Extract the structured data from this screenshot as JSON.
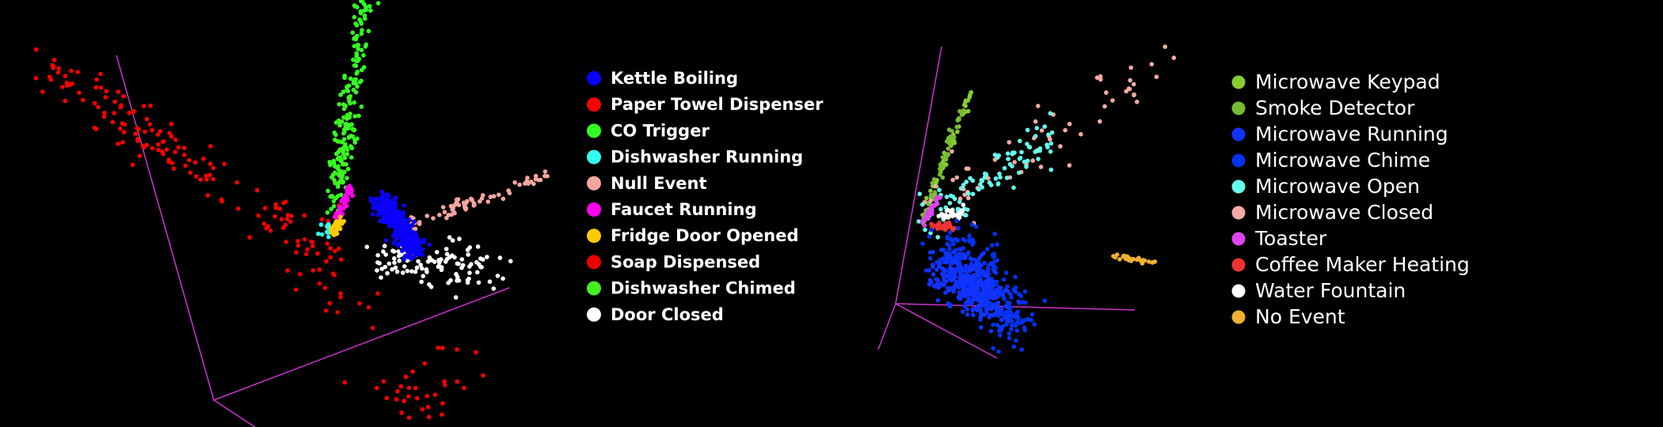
{
  "panels": [
    {
      "legend": [
        {
          "label": "Kettle Boiling",
          "color": "#0a00ff"
        },
        {
          "label": "Paper Towel Dispenser",
          "color": "#ff0000"
        },
        {
          "label": "CO Trigger",
          "color": "#33ff22"
        },
        {
          "label": "Dishwasher Running",
          "color": "#33ffee"
        },
        {
          "label": "Null Event",
          "color": "#f5a5a0"
        },
        {
          "label": "Faucet Running",
          "color": "#ff00ee"
        },
        {
          "label": "Fridge Door Opened",
          "color": "#ffcc00"
        },
        {
          "label": "Soap Dispensed",
          "color": "#ee0000"
        },
        {
          "label": "Dishwasher Chimed",
          "color": "#44ee22"
        },
        {
          "label": "Door Closed",
          "color": "#ffffff"
        }
      ]
    },
    {
      "legend": [
        {
          "label": "Microwave Keypad",
          "color": "#88cc33"
        },
        {
          "label": "Smoke Detector",
          "color": "#77bb33"
        },
        {
          "label": "Microwave Running",
          "color": "#1133ff"
        },
        {
          "label": "Microwave Chime",
          "color": "#0033ee"
        },
        {
          "label": "Microwave Open",
          "color": "#66ffee"
        },
        {
          "label": "Microwave Closed",
          "color": "#f5aaa5"
        },
        {
          "label": "Toaster",
          "color": "#dd44ee"
        },
        {
          "label": "Coffee Maker Heating",
          "color": "#ee3333"
        },
        {
          "label": "Water Fountain",
          "color": "#ffffff"
        },
        {
          "label": "No Event",
          "color": "#f0b030"
        }
      ]
    }
  ]
}
